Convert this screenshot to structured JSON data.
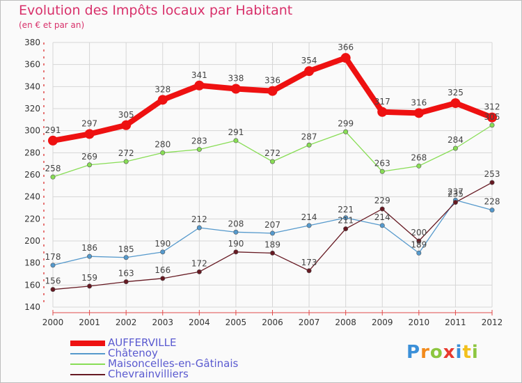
{
  "chart_data": {
    "type": "line",
    "title": "Evolution des Impôts locaux par Habitant",
    "subtitle": "(en € et par an)",
    "x": [
      "2000",
      "2001",
      "2002",
      "2003",
      "2004",
      "2005",
      "2006",
      "2007",
      "2008",
      "2009",
      "2010",
      "2011",
      "2012"
    ],
    "ylim": [
      140,
      380
    ],
    "yticks": [
      140,
      160,
      180,
      200,
      220,
      240,
      260,
      280,
      300,
      320,
      340,
      360,
      380
    ],
    "grid": true,
    "legend_position": "bottom-left",
    "series": [
      {
        "name": "AUFFERVILLE",
        "color": "#ee1111",
        "values": [
          291,
          297,
          305,
          328,
          341,
          338,
          336,
          354,
          366,
          317,
          316,
          325,
          312
        ]
      },
      {
        "name": "Châtenoy",
        "color": "#5599cc",
        "values": [
          178,
          186,
          185,
          190,
          212,
          208,
          207,
          214,
          221,
          214,
          189,
          237,
          228
        ]
      },
      {
        "name": "Maisoncelles-en-Gâtinais",
        "color": "#88dd55",
        "values": [
          258,
          269,
          272,
          280,
          283,
          291,
          272,
          287,
          299,
          263,
          268,
          284,
          305
        ]
      },
      {
        "name": "Chevrainvilliers",
        "color": "#661922",
        "values": [
          156,
          159,
          163,
          166,
          172,
          190,
          189,
          173,
          211,
          229,
          200,
          235,
          253
        ]
      }
    ]
  },
  "logo": {
    "letters": [
      "P",
      "r",
      "o",
      "x",
      "i",
      "t",
      "i"
    ],
    "colors": [
      "#3a8fd8",
      "#f28a1c",
      "#8cc63f",
      "#e8392e",
      "#3a8fd8",
      "#f2c01c",
      "#8cc63f"
    ]
  }
}
